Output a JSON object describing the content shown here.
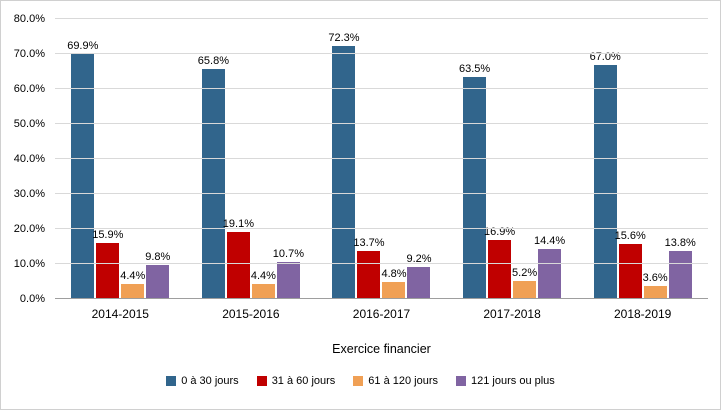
{
  "chart_data": {
    "type": "bar",
    "title": "",
    "xlabel": "Exercice financier",
    "ylabel": "",
    "ylim": [
      0,
      80
    ],
    "ytick_step": 10,
    "ytick_labels": [
      "0.0%",
      "10.0%",
      "20.0%",
      "30.0%",
      "40.0%",
      "50.0%",
      "60.0%",
      "70.0%",
      "80.0%"
    ],
    "grid": true,
    "legend_position": "bottom",
    "categories": [
      "2014-2015",
      "2015-2016",
      "2016-2017",
      "2017-2018",
      "2018-2019"
    ],
    "series": [
      {
        "name": "0 à 30 jours",
        "color": "#31658c",
        "values": [
          69.9,
          65.8,
          72.3,
          63.5,
          67.0
        ],
        "labels": [
          "69.9%",
          "65.8%",
          "72.3%",
          "63.5%",
          "67.0%"
        ]
      },
      {
        "name": "31 à 60 jours",
        "color": "#c00000",
        "values": [
          15.9,
          19.1,
          13.7,
          16.9,
          15.6
        ],
        "labels": [
          "15.9%",
          "19.1%",
          "13.7%",
          "16.9%",
          "15.6%"
        ]
      },
      {
        "name": "61 à 120 jours",
        "color": "#f0a055",
        "values": [
          4.4,
          4.4,
          4.8,
          5.2,
          3.6
        ],
        "labels": [
          "4.4%",
          "4.4%",
          "4.8%",
          "5.2%",
          "3.6%"
        ]
      },
      {
        "name": "121 jours ou plus",
        "color": "#8064a2",
        "values": [
          9.8,
          10.7,
          9.2,
          14.4,
          13.8
        ],
        "labels": [
          "9.8%",
          "10.7%",
          "9.2%",
          "14.4%",
          "13.8%"
        ]
      }
    ]
  }
}
